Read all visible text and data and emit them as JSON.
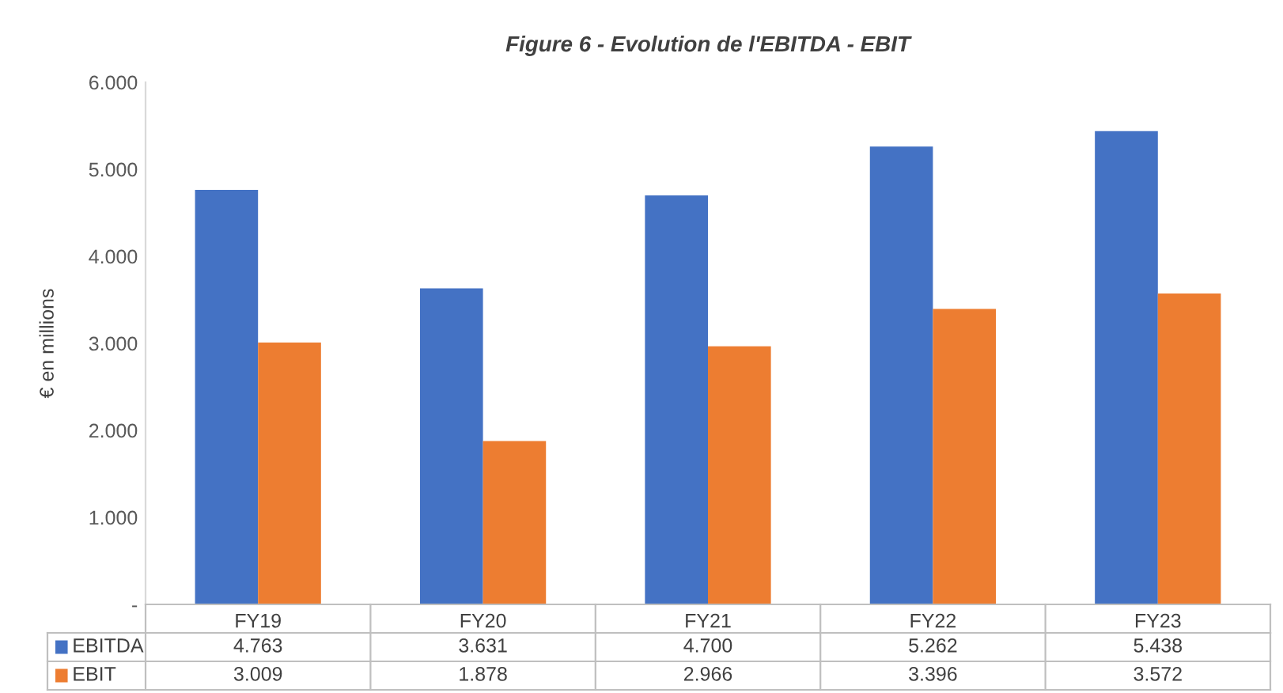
{
  "chart_data": {
    "type": "bar",
    "title": "Figure 6 - Evolution de l'EBITDA - EBIT",
    "ylabel": "€ en millions",
    "categories": [
      "FY19",
      "FY20",
      "FY21",
      "FY22",
      "FY23"
    ],
    "series": [
      {
        "name": "EBITDA",
        "color": "#4472c4",
        "values": [
          4763,
          3631,
          4700,
          5262,
          5438
        ],
        "value_labels": [
          "4.763",
          "3.631",
          "4.700",
          "5.262",
          "5.438"
        ]
      },
      {
        "name": "EBIT",
        "color": "#ed7d31",
        "values": [
          3009,
          1878,
          2966,
          3396,
          3572
        ],
        "value_labels": [
          "3.009",
          "1.878",
          "2.966",
          "3.396",
          "3.572"
        ]
      }
    ],
    "ylim": [
      0,
      6000
    ],
    "yticks": [
      {
        "value": 0,
        "label": "-"
      },
      {
        "value": 1000,
        "label": "1.000"
      },
      {
        "value": 2000,
        "label": "2.000"
      },
      {
        "value": 3000,
        "label": "3.000"
      },
      {
        "value": 4000,
        "label": "4.000"
      },
      {
        "value": 5000,
        "label": "5.000"
      },
      {
        "value": 6000,
        "label": "6.000"
      }
    ],
    "legend": "bottom"
  }
}
